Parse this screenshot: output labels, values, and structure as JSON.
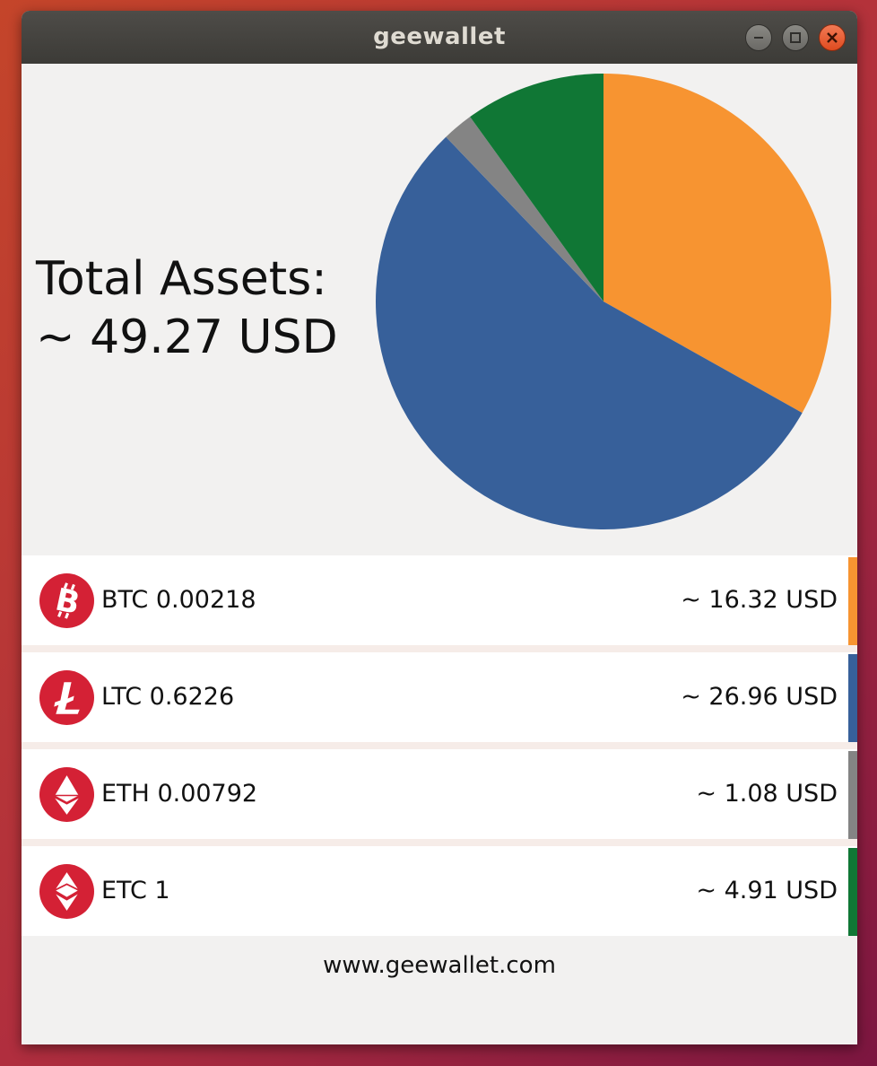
{
  "window": {
    "title": "geewallet",
    "controls": {
      "minimize": "minimize-icon",
      "maximize": "maximize-icon",
      "close": "close-icon"
    }
  },
  "summary": {
    "line1": "Total Assets:",
    "line2": "~ 49.27 USD"
  },
  "chart_data": {
    "type": "pie",
    "slices": [
      {
        "label": "BTC",
        "value": 16.32,
        "color": "#f79431"
      },
      {
        "label": "LTC",
        "value": 26.96,
        "color": "#37609a"
      },
      {
        "label": "ETH",
        "value": 1.08,
        "color": "#848484"
      },
      {
        "label": "ETC",
        "value": 4.91,
        "color": "#107735"
      }
    ]
  },
  "accounts": [
    {
      "icon": "bitcoin-icon",
      "amount": "BTC 0.00218",
      "usd": "~ 16.32 USD",
      "color": "#f79431"
    },
    {
      "icon": "litecoin-icon",
      "amount": "LTC 0.6226",
      "usd": "~ 26.96 USD",
      "color": "#37609a"
    },
    {
      "icon": "ethereum-icon",
      "amount": "ETH 0.00792",
      "usd": "~ 1.08 USD",
      "color": "#848484"
    },
    {
      "icon": "ethereum-classic-icon",
      "amount": "ETC 1",
      "usd": "~ 4.91 USD",
      "color": "#107735"
    }
  ],
  "icon_color": "#d42135",
  "footer": {
    "link": "www.geewallet.com"
  }
}
